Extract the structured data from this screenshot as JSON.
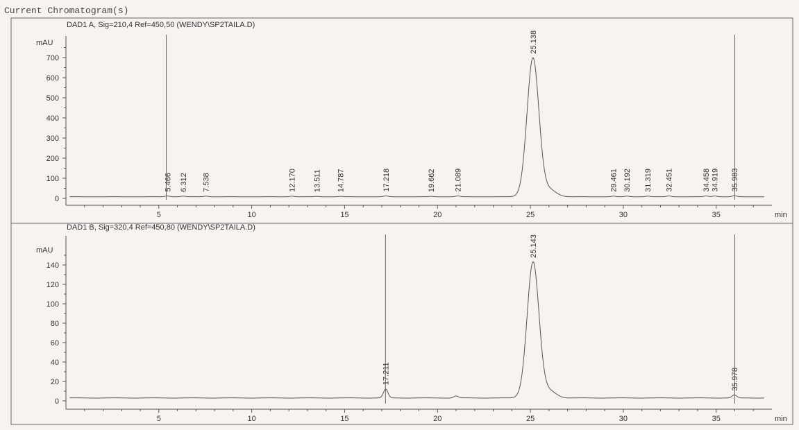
{
  "header": {
    "title": "Current Chromatogram(s)"
  },
  "chart_data": [
    {
      "type": "line",
      "title": "DAD1 A, Sig=210,4 Ref=450,50 (WENDY\\SP2TAILA.D)",
      "ylabel": "mAU",
      "xlabel": "min",
      "xlim": [
        0,
        38
      ],
      "ylim": [
        -20,
        860
      ],
      "x_ticks": [
        5,
        10,
        15,
        20,
        25,
        30,
        35
      ],
      "y_ticks": [
        0,
        100,
        200,
        300,
        400,
        500,
        600,
        700
      ],
      "baseline": 8,
      "marker_lines": [
        5.4,
        36.0
      ],
      "peaks": [
        {
          "rt": "5.466",
          "x": 5.466,
          "height": 4
        },
        {
          "rt": "6.312",
          "x": 6.312,
          "height": 3
        },
        {
          "rt": "7.538",
          "x": 7.538,
          "height": 3
        },
        {
          "rt": "12.170",
          "x": 12.17,
          "height": 3
        },
        {
          "rt": "13.511",
          "x": 13.511,
          "height": 2
        },
        {
          "rt": "14.787",
          "x": 14.787,
          "height": 2
        },
        {
          "rt": "17.218",
          "x": 17.218,
          "height": 4
        },
        {
          "rt": "19.662",
          "x": 19.662,
          "height": 2
        },
        {
          "rt": "21.089",
          "x": 21.089,
          "height": 4
        },
        {
          "rt": "25.138",
          "x": 25.138,
          "height": 690
        },
        {
          "rt": "29.461",
          "x": 29.461,
          "height": 3
        },
        {
          "rt": "30.192",
          "x": 30.192,
          "height": 3
        },
        {
          "rt": "31.319",
          "x": 31.319,
          "height": 3
        },
        {
          "rt": "32.451",
          "x": 32.451,
          "height": 4
        },
        {
          "rt": "34.458",
          "x": 34.458,
          "height": 4
        },
        {
          "rt": "34.919",
          "x": 34.919,
          "height": 4
        },
        {
          "rt": "35.983",
          "x": 35.983,
          "height": 5
        }
      ]
    },
    {
      "type": "line",
      "title": "DAD1 B, Sig=320,4 Ref=450,80 (WENDY\\SP2TAILA.D)",
      "ylabel": "mAU",
      "xlabel": "min",
      "xlim": [
        0,
        38
      ],
      "ylim": [
        -5,
        165
      ],
      "x_ticks": [
        5,
        10,
        15,
        20,
        25,
        30,
        35
      ],
      "y_ticks": [
        0,
        20,
        40,
        60,
        80,
        100,
        120,
        140
      ],
      "baseline": 3,
      "marker_lines": [
        17.2,
        36.0
      ],
      "peaks": [
        {
          "rt": "17.211",
          "x": 17.211,
          "height": 9
        },
        {
          "rt": "",
          "x": 21.0,
          "height": 2
        },
        {
          "rt": "25.143",
          "x": 25.143,
          "height": 140
        },
        {
          "rt": "35.978",
          "x": 35.978,
          "height": 3
        }
      ]
    }
  ]
}
